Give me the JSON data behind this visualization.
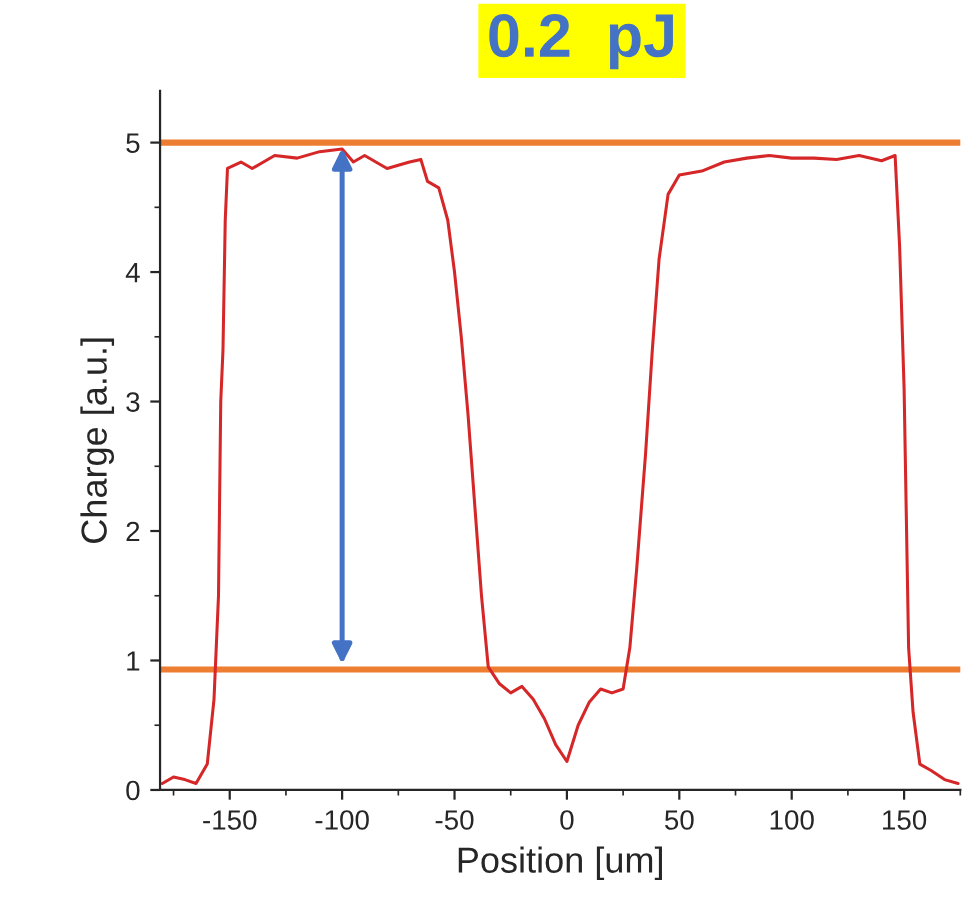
{
  "chart_data": {
    "type": "line",
    "title": "0.2  pJ",
    "xlabel": "Position [um]",
    "ylabel": "Charge [a.u.]",
    "x": [
      -180,
      -175,
      -170,
      -165,
      -160,
      -157,
      -155,
      -154,
      -153,
      -152,
      -151,
      -145,
      -140,
      -130,
      -120,
      -110,
      -100,
      -95,
      -90,
      -80,
      -70,
      -65,
      -62,
      -57,
      -53,
      -50,
      -47,
      -44,
      -41,
      -38,
      -35,
      -30,
      -25,
      -20,
      -15,
      -10,
      -5,
      0,
      5,
      10,
      15,
      20,
      25,
      28,
      31,
      35,
      38,
      41,
      45,
      50,
      60,
      70,
      80,
      90,
      100,
      110,
      120,
      130,
      140,
      146,
      148,
      150,
      152,
      154,
      157,
      162,
      168,
      174
    ],
    "series": [
      {
        "color": "#d62728",
        "values": [
          0.05,
          0.1,
          0.08,
          0.05,
          0.2,
          0.7,
          1.5,
          3.0,
          3.4,
          4.4,
          4.8,
          4.85,
          4.8,
          4.9,
          4.88,
          4.93,
          4.95,
          4.85,
          4.9,
          4.8,
          4.85,
          4.87,
          4.7,
          4.65,
          4.4,
          4.0,
          3.5,
          2.9,
          2.2,
          1.5,
          0.95,
          0.82,
          0.75,
          0.8,
          0.7,
          0.55,
          0.35,
          0.22,
          0.5,
          0.68,
          0.78,
          0.75,
          0.78,
          1.1,
          1.7,
          2.6,
          3.4,
          4.1,
          4.6,
          4.75,
          4.78,
          4.85,
          4.88,
          4.9,
          4.88,
          4.88,
          4.87,
          4.9,
          4.86,
          4.9,
          4.2,
          3.1,
          1.1,
          0.6,
          0.2,
          0.15,
          0.08,
          0.05
        ]
      }
    ],
    "xlim": [
      -181,
      175
    ],
    "ylim": [
      0,
      5.4
    ],
    "xticks": [
      -150,
      -100,
      -50,
      0,
      50,
      100,
      150
    ],
    "yticks": [
      0,
      1,
      2,
      3,
      4,
      5
    ],
    "ref_lines": [
      {
        "axis": "y",
        "value": 5,
        "color": "#ed7d31"
      },
      {
        "axis": "y",
        "value": 0.93,
        "color": "#ed7d31"
      }
    ],
    "grid": false,
    "legend": false,
    "marker": "none",
    "line_style": "solid"
  }
}
